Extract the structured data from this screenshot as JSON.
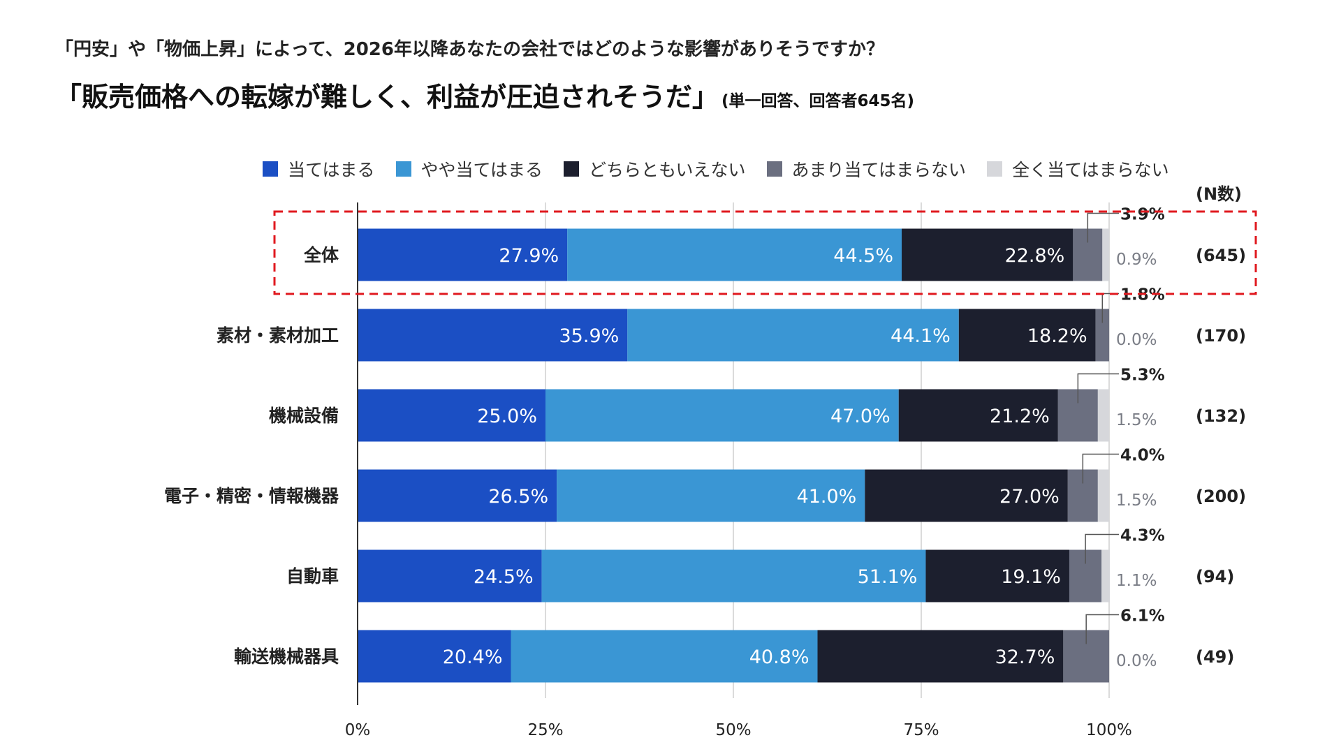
{
  "title": {
    "line1": "「円安」や「物価上昇」によって、2026年以降あなたの会社ではどのような影響がありそうですか？",
    "line2": "「販売価格への転嫁が難しく、利益が圧迫されそうだ」",
    "line2_note": "(単一回答、回答者645名)"
  },
  "legend": [
    {
      "label": "当てはまる",
      "color": "#1b4fc4"
    },
    {
      "label": "やや当てはまる",
      "color": "#3a96d4"
    },
    {
      "label": "どちらともいえない",
      "color": "#1c1f2e"
    },
    {
      "label": "あまり当てはまらない",
      "color": "#6b6f80"
    },
    {
      "label": "全く当てはまらない",
      "color": "#d6d7db"
    }
  ],
  "n_header": "(N数)",
  "highlight_color": "#e0191f",
  "chart_data": {
    "type": "bar",
    "orientation": "horizontal",
    "stacked": true,
    "categories": [
      "全体",
      "素材・素材加工",
      "機械設備",
      "電子・精密・情報機器",
      "自動車",
      "輸送機械器具"
    ],
    "series": [
      {
        "name": "当てはまる",
        "values": [
          27.9,
          35.9,
          25.0,
          26.5,
          24.5,
          20.4
        ],
        "labels": [
          "27.9%",
          "35.9%",
          "25.0%",
          "26.5%",
          "24.5%",
          "20.4%"
        ]
      },
      {
        "name": "やや当てはまる",
        "values": [
          44.5,
          44.1,
          47.0,
          41.0,
          51.1,
          40.8
        ],
        "labels": [
          "44.5%",
          "44.1%",
          "47.0%",
          "41.0%",
          "51.1%",
          "40.8%"
        ]
      },
      {
        "name": "どちらともいえない",
        "values": [
          22.8,
          18.2,
          21.2,
          27.0,
          19.1,
          32.7
        ],
        "labels": [
          "22.8%",
          "18.2%",
          "21.2%",
          "27.0%",
          "19.1%",
          "32.7%"
        ]
      },
      {
        "name": "あまり当てはまらない",
        "values": [
          3.9,
          1.8,
          5.3,
          4.0,
          4.3,
          6.1
        ],
        "labels": [
          "3.9%",
          "1.8%",
          "5.3%",
          "4.0%",
          "4.3%",
          "6.1%"
        ]
      },
      {
        "name": "全く当てはまらない",
        "values": [
          0.9,
          0.0,
          1.5,
          1.5,
          1.1,
          0.0
        ],
        "labels": [
          "0.9%",
          "0.0%",
          "1.5%",
          "1.5%",
          "1.1%",
          "0.0%"
        ]
      }
    ],
    "n_counts": [
      "(645)",
      "(170)",
      "(132)",
      "(200)",
      "(94)",
      "(49)"
    ],
    "x_ticks": [
      "0%",
      "25%",
      "50%",
      "75%",
      "100%"
    ],
    "x_tick_values": [
      0,
      25,
      50,
      75,
      100
    ],
    "xlim": [
      0,
      100
    ],
    "highlighted_category": "全体",
    "grid": true,
    "legend_position": "top"
  }
}
